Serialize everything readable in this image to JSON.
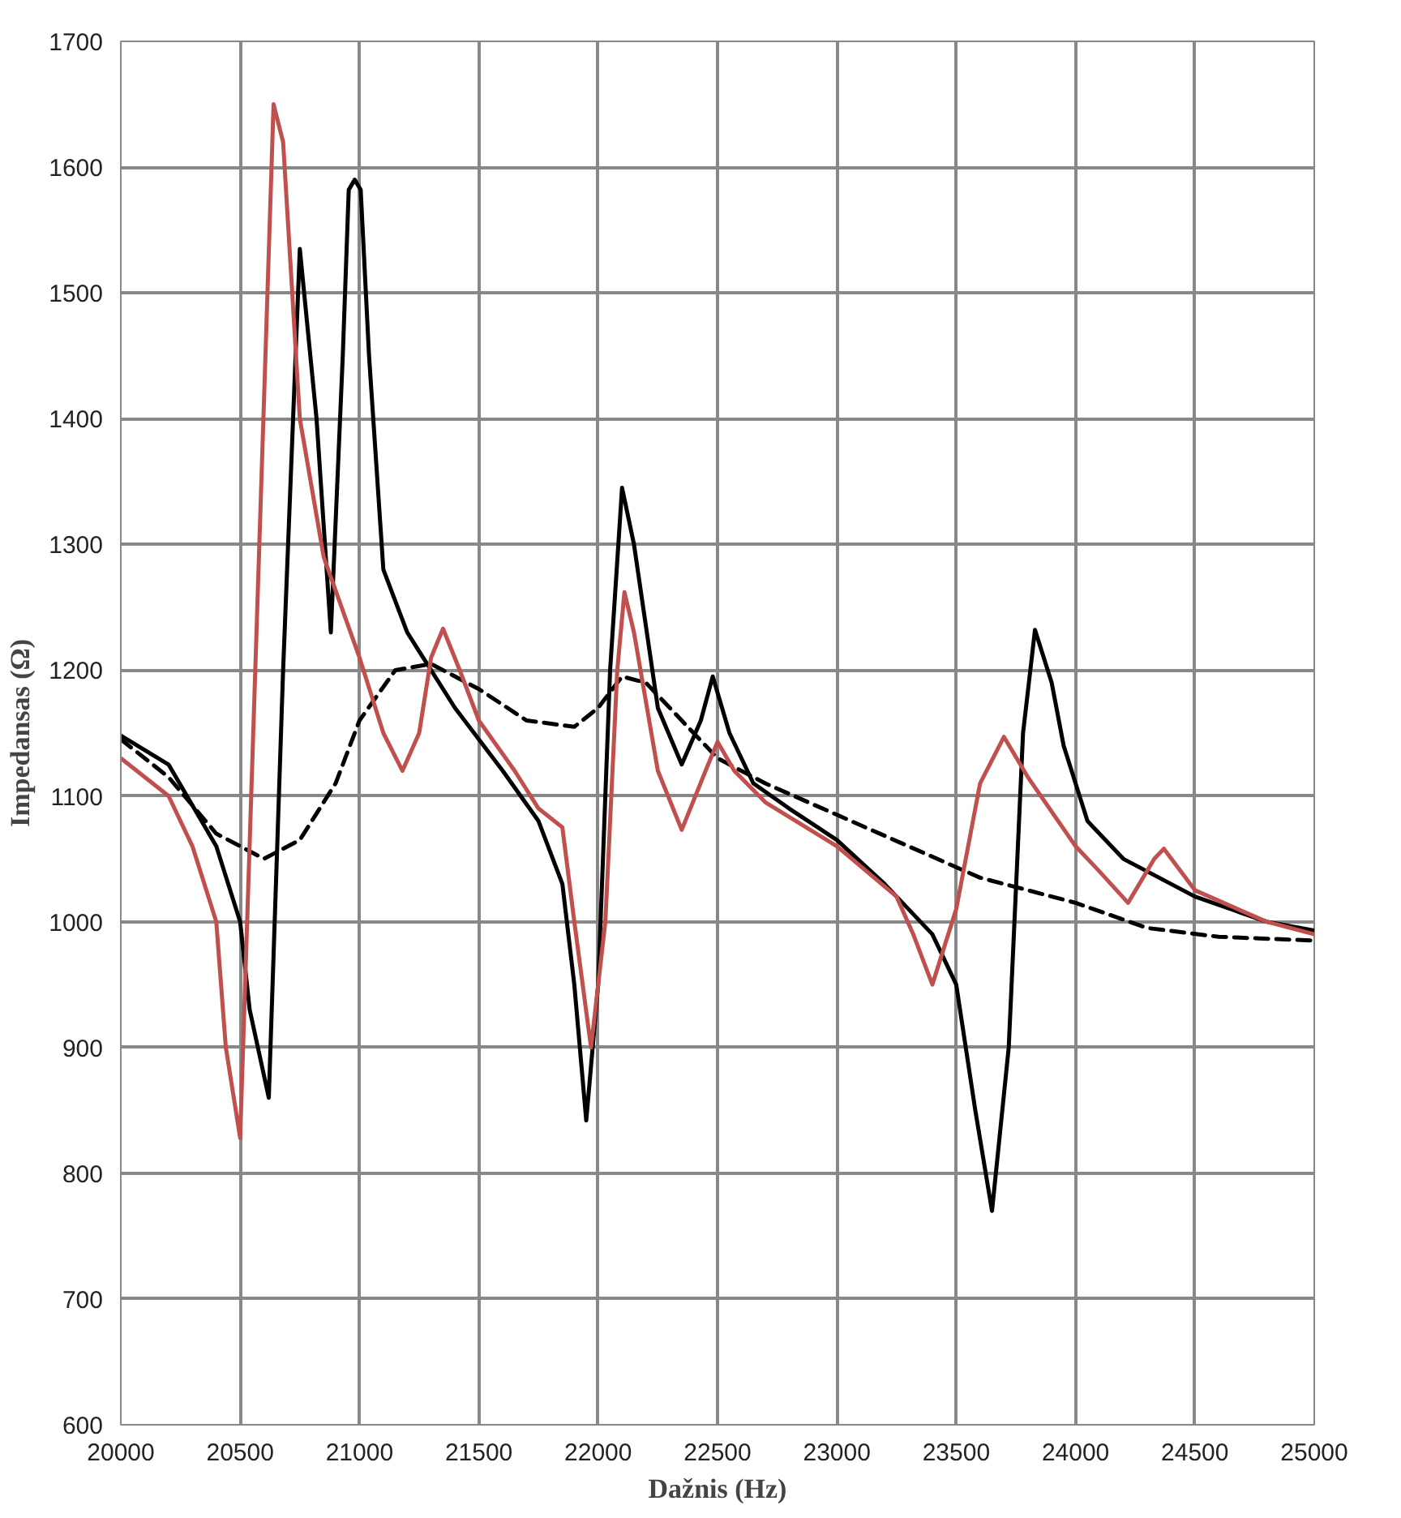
{
  "chart_data": {
    "type": "line",
    "xlabel": "Dažnis (Hz)",
    "ylabel": "Impedansas (Ω)",
    "xlim": [
      20000,
      25000
    ],
    "ylim": [
      600,
      1700
    ],
    "xticks": [
      20000,
      20500,
      21000,
      21500,
      22000,
      22500,
      23000,
      23500,
      24000,
      24500,
      25000
    ],
    "yticks": [
      600,
      700,
      800,
      900,
      1000,
      1100,
      1200,
      1300,
      1400,
      1500,
      1600,
      1700
    ],
    "grid": true,
    "series": [
      {
        "color": "#000000",
        "line_style": "dashed",
        "x": [
          20000,
          20200,
          20400,
          20600,
          20750,
          20900,
          21000,
          21150,
          21300,
          21500,
          21700,
          21900,
          22000,
          22100,
          22200,
          22350,
          22500,
          22700,
          23000,
          23300,
          23600,
          24000,
          24300,
          24600,
          25000
        ],
        "values": [
          1145,
          1115,
          1070,
          1050,
          1065,
          1110,
          1160,
          1200,
          1205,
          1185,
          1160,
          1155,
          1170,
          1195,
          1190,
          1160,
          1130,
          1110,
          1085,
          1060,
          1035,
          1015,
          995,
          988,
          985
        ]
      },
      {
        "color": "#000000",
        "line_style": "solid",
        "x": [
          20000,
          20200,
          20400,
          20500,
          20540,
          20620,
          20680,
          20750,
          20820,
          20880,
          20930,
          20955,
          20980,
          21005,
          21040,
          21100,
          21200,
          21400,
          21600,
          21750,
          21850,
          21900,
          21950,
          22000,
          22050,
          22100,
          22150,
          22250,
          22350,
          22430,
          22480,
          22550,
          22650,
          22800,
          23000,
          23200,
          23400,
          23500,
          23580,
          23650,
          23720,
          23780,
          23830,
          23900,
          23950,
          24050,
          24200,
          24500,
          24800,
          25000
        ],
        "values": [
          1148,
          1125,
          1060,
          1000,
          930,
          860,
          1200,
          1535,
          1400,
          1230,
          1450,
          1582,
          1590,
          1582,
          1450,
          1280,
          1230,
          1170,
          1120,
          1080,
          1030,
          950,
          842,
          950,
          1200,
          1345,
          1300,
          1170,
          1125,
          1160,
          1195,
          1150,
          1110,
          1090,
          1065,
          1030,
          990,
          950,
          850,
          770,
          900,
          1150,
          1232,
          1190,
          1140,
          1080,
          1050,
          1020,
          1000,
          993
        ]
      },
      {
        "color": "#c0504d",
        "line_style": "solid",
        "x": [
          20000,
          20200,
          20300,
          20400,
          20440,
          20500,
          20640,
          20680,
          20750,
          20850,
          21000,
          21100,
          21180,
          21250,
          21300,
          21350,
          21420,
          21500,
          21650,
          21750,
          21850,
          21900,
          21970,
          22030,
          22080,
          22110,
          22150,
          22250,
          22350,
          22450,
          22500,
          22570,
          22700,
          23000,
          23250,
          23320,
          23400,
          23500,
          23600,
          23700,
          23800,
          24000,
          24100,
          24220,
          24330,
          24370,
          24500,
          24800,
          25000
        ],
        "values": [
          1130,
          1100,
          1060,
          1000,
          900,
          828,
          1650,
          1620,
          1400,
          1290,
          1210,
          1150,
          1120,
          1150,
          1210,
          1233,
          1200,
          1160,
          1120,
          1090,
          1075,
          1000,
          900,
          1000,
          1200,
          1262,
          1230,
          1120,
          1073,
          1120,
          1143,
          1120,
          1095,
          1060,
          1020,
          990,
          950,
          1010,
          1110,
          1147,
          1115,
          1060,
          1040,
          1015,
          1050,
          1058,
          1025,
          1000,
          990
        ]
      }
    ]
  }
}
